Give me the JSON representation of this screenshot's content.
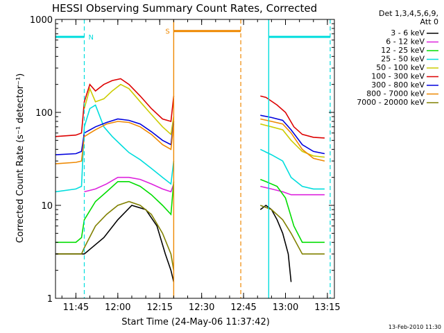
{
  "chart_data": {
    "type": "line",
    "title": "HESSI Observing Summary Count Rates, Corrected",
    "xlabel": "Start Time (24-May-06 11:37:42)",
    "ylabel": "Corrected Count Rate (s⁻¹ detector⁻¹)",
    "yscale": "log",
    "ylim": [
      1,
      1000
    ],
    "xlim": [
      "11:37:42",
      "13:17:30"
    ],
    "xtick_labels": [
      "11:45",
      "12:00",
      "12:15",
      "12:30",
      "12:45",
      "13:00",
      "13:15"
    ],
    "ytick_labels": [
      "1",
      "10",
      "100",
      "1000"
    ],
    "grid": false,
    "legend_position": "right-outside",
    "legend_header": [
      "Det 1,3,4,5,6,9,",
      "Att 0"
    ],
    "footer_date": "13-Feb-2010 11:30",
    "series": [
      {
        "name": "3 - 6 keV",
        "color": "#000000",
        "segments": [
          {
            "x": [
              "11:37:42",
              "11:47",
              "11:48",
              "11:55",
              "12:00",
              "12:05",
              "12:10",
              "12:14",
              "12:17",
              "12:19",
              "12:20"
            ],
            "y": [
              3,
              3,
              3,
              4.5,
              7,
              10,
              9,
              6,
              3,
              2,
              1.5
            ]
          },
          {
            "x": [
              "12:51",
              "12:53",
              "12:55",
              "12:57",
              "12:59",
              "13:01",
              "13:02"
            ],
            "y": [
              9,
              10,
              9,
              7,
              5,
              3,
              1.5
            ]
          }
        ]
      },
      {
        "name": "6 - 12 keV",
        "color": "#dd22dd",
        "segments": [
          {
            "x": [
              "11:37:42",
              "11:47",
              "11:48",
              "11:52",
              "11:56",
              "12:00",
              "12:04",
              "12:08",
              "12:12",
              "12:16",
              "12:19",
              "12:20"
            ],
            "y": [
              null,
              null,
              14,
              15,
              17,
              20,
              20,
              19,
              17,
              15,
              14,
              17
            ]
          },
          {
            "x": [
              "12:51",
              "12:55",
              "12:59",
              "13:02",
              "13:05",
              "13:10",
              "13:14"
            ],
            "y": [
              16,
              15,
              14,
              13,
              13,
              13,
              13
            ]
          }
        ]
      },
      {
        "name": "12 - 25 keV",
        "color": "#00dd00",
        "segments": [
          {
            "x": [
              "11:37:42",
              "11:45",
              "11:47",
              "11:48",
              "11:52",
              "11:56",
              "12:00",
              "12:04",
              "12:08",
              "12:12",
              "12:16",
              "12:19",
              "12:20"
            ],
            "y": [
              4,
              4,
              4.5,
              7,
              11,
              14,
              18,
              18,
              16,
              13,
              10,
              8,
              18
            ]
          },
          {
            "x": [
              "12:51",
              "12:53",
              "12:57",
              "13:00",
              "13:03",
              "13:06",
              "13:10",
              "13:14"
            ],
            "y": [
              19,
              18,
              16,
              12,
              6,
              4,
              4,
              4
            ]
          }
        ]
      },
      {
        "name": "25 - 50 keV",
        "color": "#00dddd",
        "segments": [
          {
            "x": [
              "11:37:42",
              "11:45",
              "11:47",
              "11:48",
              "11:50",
              "11:52",
              "11:55",
              "11:58",
              "12:01",
              "12:04",
              "12:08",
              "12:12",
              "12:16",
              "12:19",
              "12:20"
            ],
            "y": [
              14,
              15,
              16,
              70,
              110,
              120,
              70,
              55,
              45,
              37,
              31,
              25,
              20,
              17,
              30
            ]
          },
          {
            "x": [
              "12:51",
              "12:55",
              "12:59",
              "13:02",
              "13:06",
              "13:10",
              "13:14"
            ],
            "y": [
              40,
              35,
              30,
              20,
              16,
              15,
              15
            ]
          }
        ]
      },
      {
        "name": "50 - 100 keV",
        "color": "#cccc00",
        "segments": [
          {
            "x": [
              "11:37:42",
              "11:47",
              "11:48",
              "11:50",
              "11:52",
              "11:55",
              "11:58",
              "12:01",
              "12:04",
              "12:08",
              "12:12",
              "12:16",
              "12:19",
              "12:20"
            ],
            "y": [
              null,
              null,
              110,
              180,
              130,
              140,
              170,
              200,
              180,
              130,
              95,
              70,
              58,
              90
            ]
          },
          {
            "x": [
              "12:51",
              "12:55",
              "12:59",
              "13:02",
              "13:06",
              "13:10",
              "13:14"
            ],
            "y": [
              75,
              70,
              65,
              50,
              38,
              34,
              33
            ]
          }
        ]
      },
      {
        "name": "100 - 300 keV",
        "color": "#dd0000",
        "segments": [
          {
            "x": [
              "11:37:42",
              "11:45",
              "11:47",
              "11:48",
              "11:50",
              "11:52",
              "11:55",
              "11:58",
              "12:01",
              "12:04",
              "12:08",
              "12:12",
              "12:16",
              "12:19",
              "12:20"
            ],
            "y": [
              55,
              57,
              60,
              130,
              200,
              170,
              200,
              220,
              230,
              200,
              150,
              110,
              85,
              80,
              150
            ]
          },
          {
            "x": [
              "12:51",
              "12:53",
              "12:57",
              "13:00",
              "13:03",
              "13:06",
              "13:10",
              "13:14"
            ],
            "y": [
              150,
              145,
              120,
              100,
              70,
              58,
              54,
              53
            ]
          }
        ]
      },
      {
        "name": "300 - 800 keV",
        "color": "#0000dd",
        "segments": [
          {
            "x": [
              "11:37:42",
              "11:45",
              "11:47",
              "11:48",
              "11:52",
              "11:56",
              "12:00",
              "12:04",
              "12:08",
              "12:12",
              "12:16",
              "12:19",
              "12:20"
            ],
            "y": [
              35,
              36,
              38,
              60,
              70,
              78,
              85,
              82,
              75,
              62,
              50,
              45,
              80
            ]
          },
          {
            "x": [
              "12:51",
              "12:55",
              "12:59",
              "13:02",
              "13:06",
              "13:10",
              "13:14"
            ],
            "y": [
              93,
              88,
              82,
              65,
              45,
              38,
              36
            ]
          }
        ]
      },
      {
        "name": "800 - 7000 keV",
        "color": "#ee8800",
        "segments": [
          {
            "x": [
              "11:37:42",
              "11:45",
              "11:47",
              "11:48",
              "11:52",
              "11:56",
              "12:00",
              "12:04",
              "12:08",
              "12:12",
              "12:16",
              "12:19",
              "12:20"
            ],
            "y": [
              28,
              29,
              30,
              55,
              65,
              75,
              80,
              78,
              70,
              58,
              45,
              40,
              75
            ]
          },
          {
            "x": [
              "12:51",
              "12:55",
              "12:59",
              "13:02",
              "13:06",
              "13:10",
              "13:14"
            ],
            "y": [
              85,
              80,
              75,
              60,
              40,
              32,
              30
            ]
          }
        ]
      },
      {
        "name": "7000 - 20000 keV",
        "color": "#808000",
        "segments": [
          {
            "x": [
              "11:37:42",
              "11:47",
              "11:48",
              "11:52",
              "11:56",
              "12:00",
              "12:04",
              "12:08",
              "12:12",
              "12:16",
              "12:19",
              "12:20"
            ],
            "y": [
              3,
              3,
              3.5,
              6,
              8,
              10,
              11,
              10,
              8,
              5,
              3,
              2
            ]
          },
          {
            "x": [
              "12:51",
              "12:55",
              "12:59",
              "13:02",
              "13:06",
              "13:10",
              "13:14"
            ],
            "y": [
              10,
              9,
              7,
              5,
              3,
              3,
              3
            ]
          }
        ]
      }
    ],
    "markers": [
      {
        "label": "N",
        "color": "#00dddd",
        "bar_x": [
          "11:37:42",
          "11:48"
        ],
        "bar_y": 650,
        "dashed_x": "11:48"
      },
      {
        "label": "S",
        "color": "#ee8800",
        "solid_x": "12:20",
        "bar_x": [
          "12:20",
          "12:44"
        ],
        "bar_y": 750,
        "dashed_x": "12:44"
      },
      {
        "label": "",
        "color": "#00dddd",
        "solid_x": "12:54",
        "bar_x": [
          "12:54",
          "13:16"
        ],
        "bar_y": 650,
        "dashed_x": "13:16"
      }
    ]
  }
}
